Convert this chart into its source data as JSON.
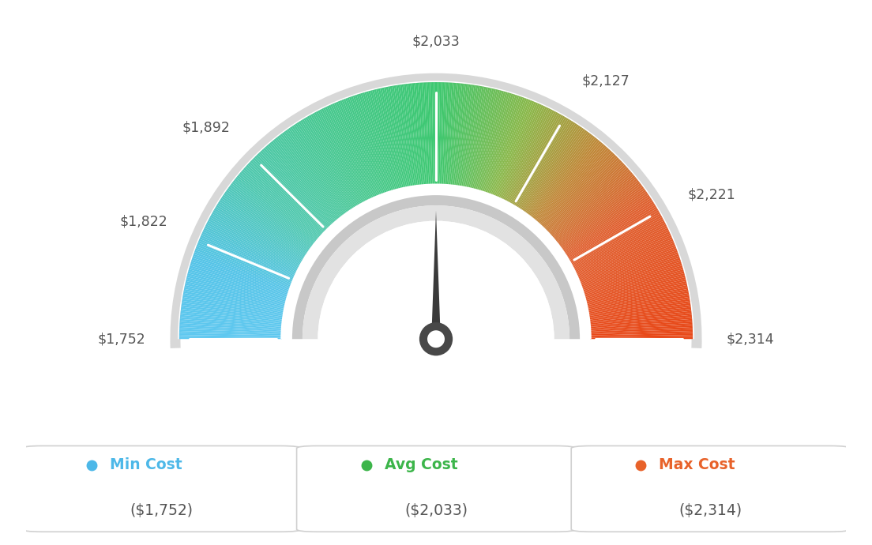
{
  "min_val": 1752,
  "avg_val": 2033,
  "max_val": 2314,
  "tick_labels": [
    "$1,752",
    "$1,822",
    "$1,892",
    "$2,033",
    "$2,127",
    "$2,221",
    "$2,314"
  ],
  "tick_values": [
    1752,
    1822,
    1892,
    2033,
    2127,
    2221,
    2314
  ],
  "legend_labels": [
    "Min Cost",
    "Avg Cost",
    "Max Cost"
  ],
  "legend_values": [
    "($1,752)",
    "($2,033)",
    "($2,314)"
  ],
  "legend_colors": [
    "#4db8e8",
    "#3cb54a",
    "#e8622a"
  ],
  "bg_color": "#ffffff",
  "color_stops": [
    [
      0.0,
      "#5fc8f0"
    ],
    [
      0.1,
      "#55c4e8"
    ],
    [
      0.22,
      "#50c8b0"
    ],
    [
      0.35,
      "#48c890"
    ],
    [
      0.5,
      "#3dc870"
    ],
    [
      0.62,
      "#8ab84a"
    ],
    [
      0.72,
      "#c08838"
    ],
    [
      0.82,
      "#e06030"
    ],
    [
      1.0,
      "#e84818"
    ]
  ]
}
